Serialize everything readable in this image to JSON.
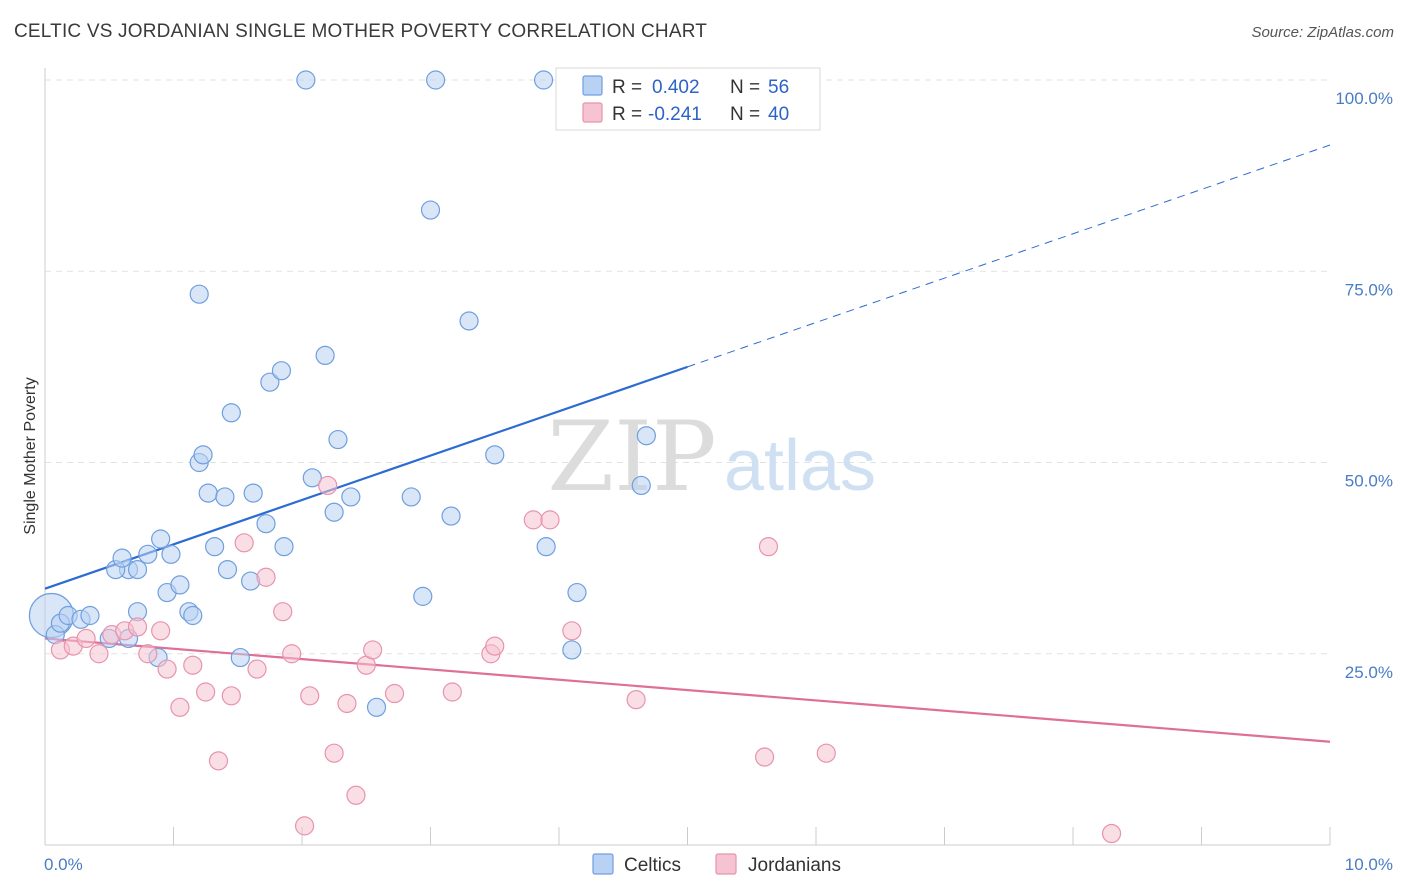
{
  "title": "CELTIC VS JORDANIAN SINGLE MOTHER POVERTY CORRELATION CHART",
  "source": "Source: ZipAtlas.com",
  "watermark": {
    "zip": "ZIP",
    "atlas": "atlas"
  },
  "chart_data": {
    "type": "scatter",
    "ylabel": "Single Mother Poverty",
    "xlim": [
      0,
      10
    ],
    "ylim": [
      0,
      100
    ],
    "x_tick_labels": [
      {
        "value": 0,
        "label": "0.0%"
      },
      {
        "value": 10,
        "label": "10.0%"
      }
    ],
    "y_tick_labels": [
      {
        "value": 25,
        "label": "25.0%"
      },
      {
        "value": 50,
        "label": "50.0%"
      },
      {
        "value": 75,
        "label": "75.0%"
      },
      {
        "value": 100,
        "label": "100.0%"
      }
    ],
    "grid": true,
    "legend_placement": "top-center",
    "stats": [
      {
        "r_label": "R =",
        "r_value": "0.402",
        "n_label": "N =",
        "n_value": "56"
      },
      {
        "r_label": "R =",
        "r_value": "-0.241",
        "n_label": "N =",
        "n_value": "40"
      }
    ],
    "series": [
      {
        "name": "Celtics",
        "color": "#6f9fdf",
        "fill": "#b9d1f2",
        "line_color": "#2c6bd1",
        "trend": {
          "x0": 0,
          "y0": 33.5,
          "x1": 5,
          "y1": 62.5,
          "dash_to": {
            "x": 10,
            "y": 91.5
          }
        },
        "points": [
          [
            0.05,
            30,
            22
          ],
          [
            0.08,
            27.5,
            9
          ],
          [
            0.12,
            29,
            9
          ],
          [
            0.18,
            30,
            9
          ],
          [
            0.28,
            29.5,
            9
          ],
          [
            0.35,
            30,
            9
          ],
          [
            0.5,
            27,
            9
          ],
          [
            0.65,
            36,
            9
          ],
          [
            0.55,
            36,
            9
          ],
          [
            0.72,
            36,
            9
          ],
          [
            0.6,
            37.5,
            9
          ],
          [
            0.72,
            30.5,
            9
          ],
          [
            0.65,
            27,
            9
          ],
          [
            0.8,
            38,
            9
          ],
          [
            0.9,
            40,
            9
          ],
          [
            0.98,
            38,
            9
          ],
          [
            0.95,
            33,
            9
          ],
          [
            1.05,
            34,
            9
          ],
          [
            1.12,
            30.5,
            9
          ],
          [
            0.88,
            24.5,
            9
          ],
          [
            1.2,
            50,
            9
          ],
          [
            1.23,
            51,
            9
          ],
          [
            1.27,
            46,
            9
          ],
          [
            1.32,
            39,
            9
          ],
          [
            1.4,
            45.5,
            9
          ],
          [
            1.42,
            36,
            9
          ],
          [
            1.45,
            56.5,
            9
          ],
          [
            1.52,
            24.5,
            9
          ],
          [
            1.6,
            34.5,
            9
          ],
          [
            1.62,
            46,
            9
          ],
          [
            1.72,
            42,
            9
          ],
          [
            1.86,
            39,
            9
          ],
          [
            1.75,
            60.5,
            9
          ],
          [
            1.84,
            62,
            9
          ],
          [
            1.2,
            72,
            9
          ],
          [
            2.03,
            100,
            9
          ],
          [
            2.08,
            48,
            9
          ],
          [
            2.18,
            64,
            9
          ],
          [
            2.28,
            53,
            9
          ],
          [
            2.25,
            43.5,
            9
          ],
          [
            2.38,
            45.5,
            9
          ],
          [
            2.58,
            18,
            9
          ],
          [
            2.85,
            45.5,
            9
          ],
          [
            2.94,
            32.5,
            9
          ],
          [
            3.0,
            83,
            9
          ],
          [
            3.04,
            100,
            9
          ],
          [
            3.16,
            43,
            9
          ],
          [
            3.3,
            68.5,
            9
          ],
          [
            3.5,
            51,
            9
          ],
          [
            3.9,
            39,
            9
          ],
          [
            3.88,
            100,
            9
          ],
          [
            4.1,
            25.5,
            9
          ],
          [
            4.14,
            33,
            9
          ],
          [
            4.64,
            47,
            9
          ],
          [
            4.68,
            53.5,
            9
          ],
          [
            1.15,
            30,
            9
          ]
        ]
      },
      {
        "name": "Jordanians",
        "color": "#e893ad",
        "fill": "#f6c3d2",
        "line_color": "#de6f98",
        "trend": {
          "x0": 0,
          "y0": 27,
          "x1": 10,
          "y1": 13.5
        },
        "points": [
          [
            0.12,
            25.5,
            9
          ],
          [
            0.22,
            26,
            9
          ],
          [
            0.32,
            27,
            9
          ],
          [
            0.42,
            25,
            9
          ],
          [
            0.52,
            27.5,
            9
          ],
          [
            0.62,
            28,
            9
          ],
          [
            0.72,
            28.5,
            9
          ],
          [
            0.8,
            25,
            9
          ],
          [
            0.9,
            28,
            9
          ],
          [
            0.95,
            23,
            9
          ],
          [
            1.05,
            18,
            9
          ],
          [
            1.15,
            23.5,
            9
          ],
          [
            1.25,
            20,
            9
          ],
          [
            1.35,
            11,
            9
          ],
          [
            1.45,
            19.5,
            9
          ],
          [
            1.55,
            39.5,
            9
          ],
          [
            1.65,
            23,
            9
          ],
          [
            1.72,
            35,
            9
          ],
          [
            1.85,
            30.5,
            9
          ],
          [
            1.92,
            25,
            9
          ],
          [
            2.02,
            2.5,
            9
          ],
          [
            2.06,
            19.5,
            9
          ],
          [
            2.2,
            47,
            9
          ],
          [
            2.25,
            12,
            9
          ],
          [
            2.35,
            18.5,
            9
          ],
          [
            2.42,
            6.5,
            9
          ],
          [
            2.5,
            23.5,
            9
          ],
          [
            2.55,
            25.5,
            9
          ],
          [
            2.72,
            19.8,
            9
          ],
          [
            3.17,
            20,
            9
          ],
          [
            3.47,
            25,
            9
          ],
          [
            3.8,
            42.5,
            9
          ],
          [
            3.93,
            42.5,
            9
          ],
          [
            4.1,
            28,
            9
          ],
          [
            4.6,
            19,
            9
          ],
          [
            5.6,
            11.5,
            9
          ],
          [
            5.63,
            39,
            9
          ],
          [
            6.08,
            12,
            9
          ],
          [
            8.3,
            1.5,
            9
          ],
          [
            3.5,
            26,
            9
          ]
        ]
      }
    ]
  }
}
